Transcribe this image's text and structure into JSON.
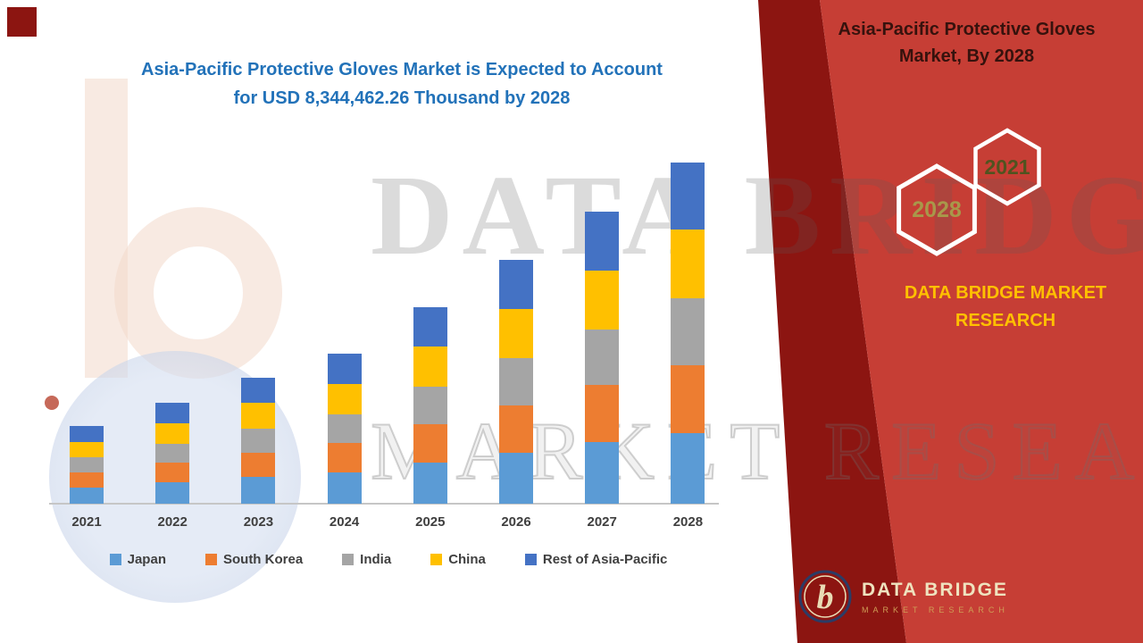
{
  "colors": {
    "panel_red": "#c63e35",
    "panel_maroon": "#8c1511",
    "title_blue": "#2272b9",
    "brand_gold": "#ffc000"
  },
  "chart": {
    "title_line1": "Asia-Pacific Protective Gloves Market is Expected to Account",
    "title_line2": "for USD 8,344,462.26 Thousand by 2028"
  },
  "chart_data": {
    "type": "bar",
    "stacked": true,
    "title": "Asia-Pacific Protective Gloves Market is Expected to Account for USD 8,344,462.26 Thousand by 2028",
    "unit": "USD Thousand",
    "categories": [
      "2021",
      "2022",
      "2023",
      "2024",
      "2025",
      "2026",
      "2027",
      "2028"
    ],
    "series": [
      {
        "name": "Japan",
        "color": "#5b9bd5",
        "values": [
          400000,
          520000,
          650000,
          770000,
          1010000,
          1250000,
          1500000,
          1725000
        ]
      },
      {
        "name": "South Korea",
        "color": "#ed7d31",
        "values": [
          370000,
          480000,
          600000,
          715000,
          935000,
          1165000,
          1395000,
          1660000
        ]
      },
      {
        "name": "India",
        "color": "#a5a5a5",
        "values": [
          360000,
          470000,
          585000,
          700000,
          920000,
          1140000,
          1365000,
          1640000
        ]
      },
      {
        "name": "China",
        "color": "#ffc000",
        "values": [
          385000,
          500000,
          625000,
          745000,
          975000,
          1210000,
          1450000,
          1682000
        ]
      },
      {
        "name": "Rest of Asia-Pacific",
        "color": "#4472c4",
        "values": [
          385000,
          500000,
          620000,
          740000,
          965000,
          1198000,
          1433000,
          1637462.26
        ]
      }
    ],
    "totals_note": "2028 total = 8,344,462.26 USD Thousand (stated in title); other year totals estimated from bar heights",
    "ylim": [
      0,
      8344462.26
    ],
    "grid": false,
    "y_axis_visible": false,
    "legend_position": "bottom"
  },
  "right_panel": {
    "title_line1": "Asia-Pacific Protective Gloves",
    "title_line2": "Market, By 2028",
    "hexagons": [
      {
        "label": "2028"
      },
      {
        "label": "2021"
      }
    ],
    "brand_line1": "DATA BRIDGE MARKET",
    "brand_line2": "RESEARCH"
  },
  "watermark": {
    "word1": "DATA BRIDGE",
    "word2": "MARKET RESEARCH"
  },
  "footer_logo": {
    "monogram": "b",
    "title": "DATA BRIDGE",
    "subtitle": "MARKET RESEARCH"
  }
}
